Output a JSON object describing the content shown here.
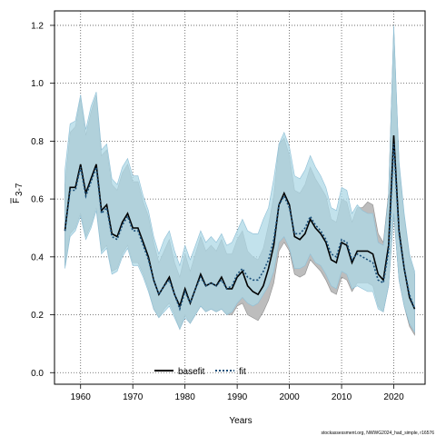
{
  "chart_data": {
    "type": "line",
    "xlabel": "Years",
    "ylabel_main": "F",
    "ylabel_sub": "3-7",
    "xlim": [
      1955,
      2026
    ],
    "ylim": [
      -0.04,
      1.25
    ],
    "xticks": [
      1960,
      1970,
      1980,
      1990,
      2000,
      2010,
      2020
    ],
    "yticks": [
      0.0,
      0.2,
      0.4,
      0.6,
      0.8,
      1.0,
      1.2
    ],
    "ytick_labels": [
      "0.0",
      "0.2",
      "0.4",
      "0.6",
      "0.8",
      "1.0",
      "1.2"
    ],
    "grid": true,
    "legend_position": "bottom",
    "footnote": "stockassessment.org, NWWG2024_had_simple, r16576",
    "colors": {
      "basefit_band": "#bdbdbd",
      "fit_band": "#add8e6",
      "fit_line": "#1a4f7a",
      "basefit_line": "#000000"
    },
    "x": [
      1957,
      1958,
      1959,
      1960,
      1961,
      1962,
      1963,
      1964,
      1965,
      1966,
      1967,
      1968,
      1969,
      1970,
      1971,
      1972,
      1973,
      1974,
      1975,
      1976,
      1977,
      1978,
      1979,
      1980,
      1981,
      1982,
      1983,
      1984,
      1985,
      1986,
      1987,
      1988,
      1989,
      1990,
      1991,
      1992,
      1993,
      1994,
      1995,
      1996,
      1997,
      1998,
      1999,
      2000,
      2001,
      2002,
      2003,
      2004,
      2005,
      2006,
      2007,
      2008,
      2009,
      2010,
      2011,
      2012,
      2013,
      2014,
      2015,
      2016,
      2017,
      2018,
      2019,
      2020,
      2021,
      2022,
      2023,
      2024
    ],
    "series": [
      {
        "name": "basefit",
        "values": [
          0.49,
          0.64,
          0.64,
          0.72,
          0.62,
          0.67,
          0.72,
          0.56,
          0.58,
          0.48,
          0.47,
          0.52,
          0.55,
          0.5,
          0.5,
          0.45,
          0.4,
          0.32,
          0.27,
          0.3,
          0.33,
          0.27,
          0.23,
          0.29,
          0.24,
          0.29,
          0.34,
          0.3,
          0.31,
          0.3,
          0.33,
          0.29,
          0.29,
          0.33,
          0.35,
          0.3,
          0.28,
          0.27,
          0.3,
          0.36,
          0.44,
          0.58,
          0.62,
          0.58,
          0.47,
          0.46,
          0.48,
          0.53,
          0.5,
          0.48,
          0.45,
          0.39,
          0.38,
          0.45,
          0.44,
          0.38,
          0.42,
          0.42,
          0.42,
          0.41,
          0.34,
          0.32,
          0.44,
          0.82,
          0.49,
          0.36,
          0.26,
          0.22
        ],
        "lower": [
          0.37,
          0.48,
          0.5,
          0.55,
          0.47,
          0.51,
          0.57,
          0.42,
          0.44,
          0.35,
          0.36,
          0.41,
          0.44,
          0.38,
          0.38,
          0.34,
          0.29,
          0.22,
          0.19,
          0.22,
          0.24,
          0.2,
          0.15,
          0.2,
          0.17,
          0.2,
          0.23,
          0.21,
          0.22,
          0.21,
          0.22,
          0.2,
          0.2,
          0.23,
          0.24,
          0.2,
          0.19,
          0.18,
          0.21,
          0.25,
          0.31,
          0.42,
          0.45,
          0.42,
          0.34,
          0.33,
          0.34,
          0.39,
          0.37,
          0.35,
          0.32,
          0.28,
          0.27,
          0.33,
          0.32,
          0.28,
          0.31,
          0.31,
          0.31,
          0.3,
          0.23,
          0.21,
          0.3,
          0.55,
          0.32,
          0.23,
          0.16,
          0.13
        ],
        "upper": [
          0.65,
          0.83,
          0.85,
          0.95,
          0.82,
          0.9,
          0.96,
          0.75,
          0.77,
          0.65,
          0.63,
          0.69,
          0.72,
          0.66,
          0.66,
          0.59,
          0.54,
          0.45,
          0.38,
          0.42,
          0.46,
          0.38,
          0.33,
          0.41,
          0.35,
          0.41,
          0.47,
          0.42,
          0.44,
          0.42,
          0.46,
          0.41,
          0.41,
          0.46,
          0.49,
          0.42,
          0.4,
          0.39,
          0.43,
          0.51,
          0.61,
          0.79,
          0.81,
          0.75,
          0.63,
          0.62,
          0.65,
          0.71,
          0.67,
          0.64,
          0.61,
          0.53,
          0.52,
          0.6,
          0.59,
          0.52,
          0.57,
          0.57,
          0.59,
          0.58,
          0.48,
          0.45,
          0.62,
          1.19,
          0.72,
          0.54,
          0.4,
          0.34
        ]
      },
      {
        "name": "fit",
        "values": [
          0.49,
          0.63,
          0.63,
          0.71,
          0.61,
          0.66,
          0.71,
          0.55,
          0.57,
          0.47,
          0.46,
          0.51,
          0.54,
          0.49,
          0.49,
          0.44,
          0.39,
          0.32,
          0.27,
          0.3,
          0.32,
          0.27,
          0.22,
          0.28,
          0.24,
          0.29,
          0.33,
          0.3,
          0.31,
          0.3,
          0.32,
          0.29,
          0.3,
          0.34,
          0.36,
          0.33,
          0.32,
          0.32,
          0.35,
          0.39,
          0.46,
          0.58,
          0.61,
          0.57,
          0.48,
          0.48,
          0.5,
          0.54,
          0.51,
          0.49,
          0.46,
          0.41,
          0.4,
          0.46,
          0.45,
          0.39,
          0.41,
          0.4,
          0.39,
          0.38,
          0.32,
          0.31,
          0.42,
          0.79,
          0.48,
          0.36,
          0.27,
          0.22
        ],
        "lower": [
          0.36,
          0.47,
          0.49,
          0.54,
          0.46,
          0.5,
          0.56,
          0.41,
          0.43,
          0.34,
          0.35,
          0.4,
          0.43,
          0.37,
          0.37,
          0.33,
          0.28,
          0.22,
          0.19,
          0.21,
          0.23,
          0.19,
          0.15,
          0.19,
          0.17,
          0.2,
          0.23,
          0.21,
          0.22,
          0.21,
          0.22,
          0.2,
          0.21,
          0.24,
          0.26,
          0.24,
          0.23,
          0.24,
          0.27,
          0.3,
          0.35,
          0.45,
          0.47,
          0.43,
          0.36,
          0.36,
          0.37,
          0.41,
          0.38,
          0.37,
          0.34,
          0.3,
          0.29,
          0.35,
          0.34,
          0.29,
          0.3,
          0.29,
          0.28,
          0.28,
          0.22,
          0.21,
          0.3,
          0.55,
          0.32,
          0.23,
          0.17,
          0.14
        ],
        "upper": [
          0.7,
          0.86,
          0.87,
          0.96,
          0.84,
          0.92,
          0.97,
          0.77,
          0.79,
          0.67,
          0.65,
          0.71,
          0.74,
          0.68,
          0.68,
          0.61,
          0.56,
          0.47,
          0.41,
          0.46,
          0.49,
          0.42,
          0.37,
          0.44,
          0.39,
          0.44,
          0.49,
          0.45,
          0.47,
          0.45,
          0.48,
          0.44,
          0.45,
          0.49,
          0.53,
          0.49,
          0.48,
          0.48,
          0.53,
          0.57,
          0.67,
          0.79,
          0.83,
          0.78,
          0.68,
          0.67,
          0.7,
          0.75,
          0.71,
          0.68,
          0.64,
          0.57,
          0.56,
          0.64,
          0.63,
          0.55,
          0.58,
          0.56,
          0.55,
          0.55,
          0.45,
          0.44,
          0.61,
          1.2,
          0.73,
          0.55,
          0.41,
          0.35
        ]
      }
    ]
  }
}
